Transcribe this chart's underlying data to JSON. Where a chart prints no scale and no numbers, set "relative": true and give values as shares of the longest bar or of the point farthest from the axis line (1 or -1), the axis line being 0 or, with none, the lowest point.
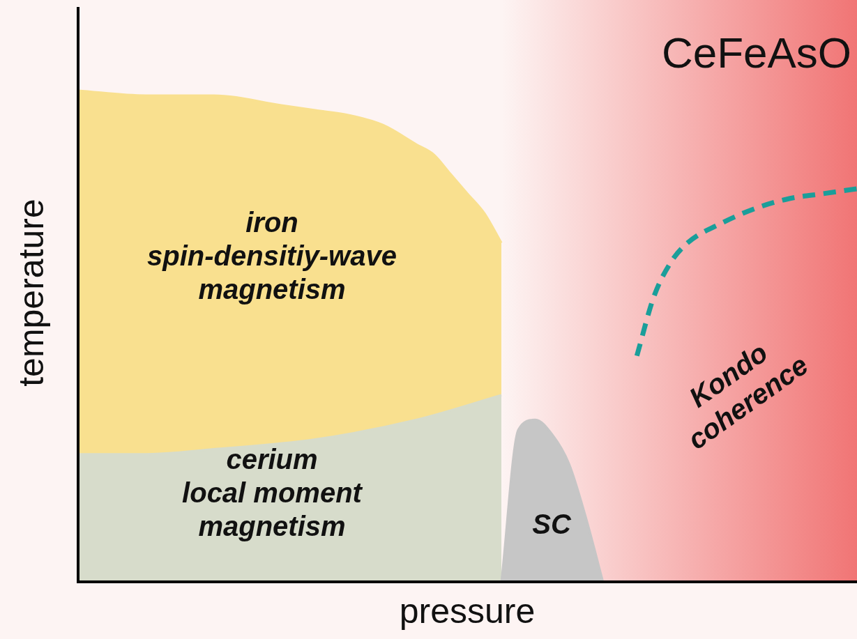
{
  "chart_data": {
    "type": "area",
    "title": "CeFeAsO",
    "xlabel": "pressure",
    "ylabel": "temperature",
    "relative": true,
    "legend": false,
    "marker": "none",
    "categories": [
      null,
      null,
      null,
      null,
      null,
      null,
      null,
      null,
      null,
      null,
      null,
      null,
      null,
      null,
      null,
      null,
      null,
      null,
      null,
      null,
      null,
      null,
      null,
      null,
      null,
      null,
      null,
      null,
      null,
      null,
      null,
      null,
      null,
      null,
      null,
      null,
      null,
      null,
      null,
      null,
      null,
      null,
      null,
      null,
      null,
      null,
      null
    ],
    "series": [
      {
        "color": "#f9e08f",
        "values": [
          1.0,
          null,
          null,
          null,
          0.99,
          null,
          null,
          null,
          0.99,
          null,
          null,
          null,
          0.97,
          null,
          0.96,
          null,
          0.95,
          null,
          0.93,
          null,
          0.89,
          0.87,
          0.83,
          0.79,
          0.75,
          0.69,
          null,
          null,
          null,
          null,
          null,
          null,
          null,
          null,
          null,
          null,
          null,
          null,
          null,
          null,
          null,
          null,
          null,
          null,
          null,
          null,
          null
        ]
      },
      {
        "color": "#d7dccb",
        "values": [
          0.26,
          null,
          null,
          null,
          0.26,
          null,
          null,
          null,
          0.27,
          null,
          null,
          null,
          null,
          null,
          0.29,
          null,
          null,
          null,
          null,
          null,
          0.33,
          null,
          null,
          null,
          null,
          0.38,
          null,
          null,
          null,
          null,
          null,
          null,
          null,
          null,
          null,
          null,
          null,
          null,
          null,
          null,
          null,
          null,
          null,
          null,
          null,
          null,
          null
        ]
      },
      {
        "color": "#c6c6c6",
        "values": [
          null,
          null,
          null,
          null,
          null,
          null,
          null,
          null,
          null,
          null,
          null,
          null,
          null,
          null,
          null,
          null,
          null,
          null,
          null,
          null,
          null,
          null,
          null,
          null,
          null,
          0,
          0.31,
          0.33,
          0.3,
          0.24,
          0.13,
          0,
          null,
          null,
          null,
          null,
          null,
          null,
          null,
          null,
          null,
          null,
          null,
          null,
          null,
          null,
          null
        ]
      },
      {
        "type": "line",
        "color": "#1a9e9a",
        "line_style": "dashed",
        "values": [
          null,
          null,
          null,
          null,
          null,
          null,
          null,
          null,
          null,
          null,
          null,
          null,
          null,
          null,
          null,
          null,
          null,
          null,
          null,
          null,
          null,
          null,
          null,
          null,
          null,
          null,
          null,
          null,
          null,
          null,
          null,
          null,
          null,
          0.46,
          0.58,
          0.65,
          0.69,
          null,
          0.73,
          null,
          0.76,
          null,
          0.78,
          null,
          0.79,
          null,
          0.8
        ]
      }
    ],
    "annotations": [
      "iron\nspin-densitiy-wave\nmagnetism",
      "cerium\nlocal moment\nmagnetism",
      "SC",
      "Kondo\ncoherence"
    ]
  }
}
